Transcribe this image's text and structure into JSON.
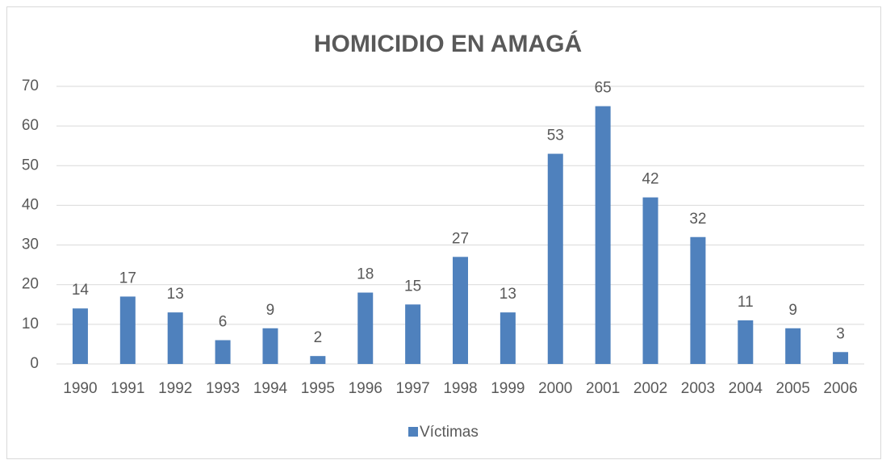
{
  "chart_data": {
    "type": "bar",
    "title": "HOMICIDIO EN AMAGÁ",
    "categories": [
      "1990",
      "1991",
      "1992",
      "1993",
      "1994",
      "1995",
      "1996",
      "1997",
      "1998",
      "1999",
      "2000",
      "2001",
      "2002",
      "2003",
      "2004",
      "2005",
      "2006"
    ],
    "series": [
      {
        "name": "Víctimas",
        "color": "#4f81bd",
        "values": [
          14,
          17,
          13,
          6,
          9,
          2,
          18,
          15,
          27,
          13,
          53,
          65,
          42,
          32,
          11,
          9,
          3
        ]
      }
    ],
    "ylim": [
      0,
      70
    ],
    "yticks": [
      0,
      10,
      20,
      30,
      40,
      50,
      60,
      70
    ],
    "grid": true,
    "legend": "bottom"
  }
}
